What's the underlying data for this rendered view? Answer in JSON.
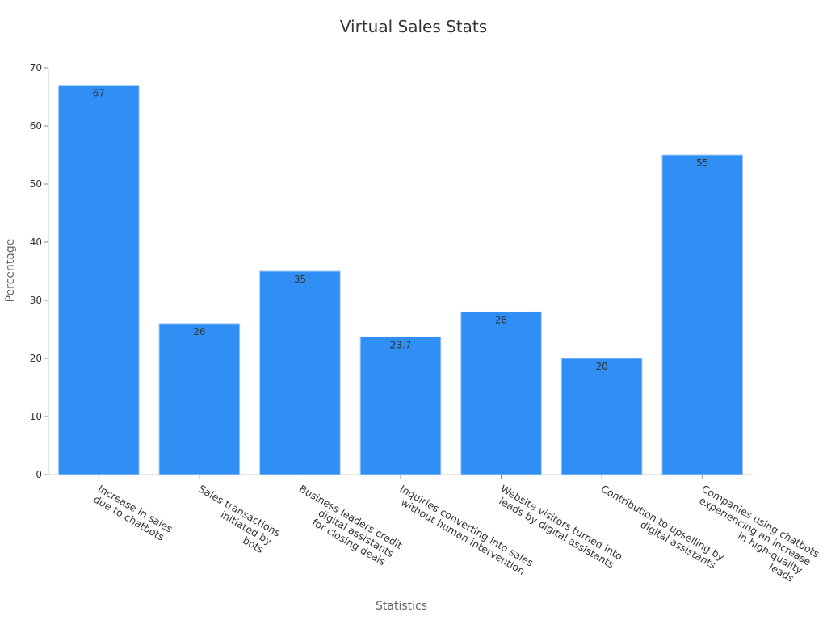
{
  "chart_data": {
    "type": "bar",
    "title": "Virtual Sales Stats",
    "xlabel": "Statistics",
    "ylabel": "Percentage",
    "ylim": [
      0,
      70
    ],
    "yticks": [
      0,
      10,
      20,
      30,
      40,
      50,
      60,
      70
    ],
    "grid": false,
    "bar_color": "#2f8ff5",
    "categories": [
      [
        "Increase in sales",
        "due to chatbots"
      ],
      [
        "Sales transactions",
        "initiated by",
        "bots"
      ],
      [
        "Business leaders credit",
        "digital assistants",
        "for closing deals"
      ],
      [
        "Inquiries converting into sales",
        "without human intervention"
      ],
      [
        "Website visitors turned into",
        "leads by digital assistants"
      ],
      [
        "Contribution to upselling by",
        "digital assistants"
      ],
      [
        "Companies using chatbots",
        "experiencing an increase",
        "in high-quality",
        "leads"
      ]
    ],
    "values": [
      67,
      26,
      35,
      23.7,
      28,
      20,
      55
    ],
    "value_labels": [
      "67",
      "26",
      "35",
      "23.7",
      "28",
      "20",
      "55"
    ]
  }
}
